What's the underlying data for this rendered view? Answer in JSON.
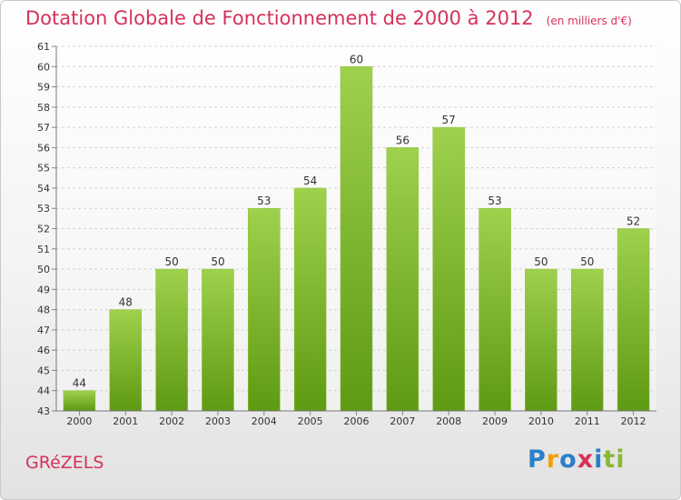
{
  "header": {
    "title": "Dotation Globale de Fonctionnement de 2000 à 2012",
    "subtitle": "(en milliers d'€)"
  },
  "footer": {
    "commune": "GRéZELS",
    "logo_text": "Proxiti"
  },
  "colors": {
    "title": "#d6325a",
    "bar_top": "#9fd14c",
    "bar_bottom": "#5e9a12"
  },
  "chart_data": {
    "type": "bar",
    "title": "Dotation Globale de Fonctionnement de 2000 à 2012",
    "subtitle": "(en milliers d'€)",
    "categories": [
      "2000",
      "2001",
      "2002",
      "2003",
      "2004",
      "2005",
      "2006",
      "2007",
      "2008",
      "2009",
      "2010",
      "2011",
      "2012"
    ],
    "values": [
      44,
      48,
      50,
      50,
      53,
      54,
      60,
      56,
      57,
      53,
      50,
      50,
      52
    ],
    "ylim": [
      43,
      61
    ],
    "yticks": [
      43,
      44,
      45,
      46,
      47,
      48,
      49,
      50,
      51,
      52,
      53,
      54,
      55,
      56,
      57,
      58,
      59,
      60,
      61
    ],
    "grid": true,
    "legend": "none"
  }
}
